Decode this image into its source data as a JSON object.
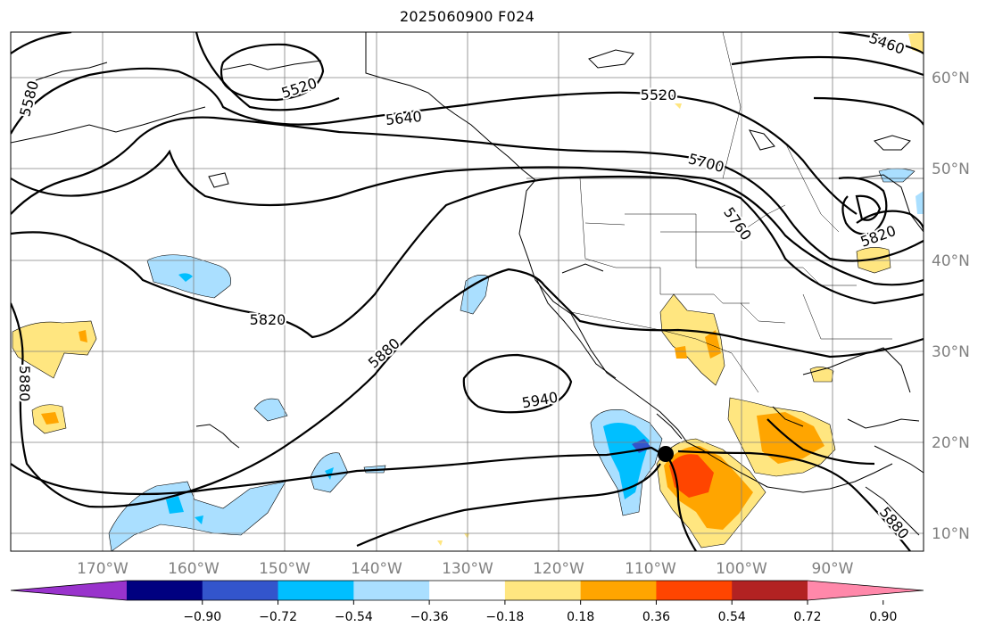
{
  "title": "2025060900 F024",
  "map": {
    "lat_labels": [
      "60°N",
      "50°N",
      "40°N",
      "30°N",
      "20°N",
      "10°N"
    ],
    "lon_labels": [
      "170°W",
      "160°W",
      "150°W",
      "140°W",
      "130°W",
      "120°W",
      "110°W",
      "100°W",
      "90°W"
    ],
    "contour_labels": [
      "5580",
      "5520",
      "5460",
      "5640",
      "5520",
      "5700",
      "5760",
      "5820",
      "5820",
      "5880",
      "5880",
      "5940",
      "5880"
    ],
    "grid_color": "#808080",
    "marker": {
      "type": "filled-circle",
      "color": "#000000"
    }
  },
  "colorbar": {
    "colors": [
      "#9933cc",
      "#000080",
      "#3355cc",
      "#00bfff",
      "#aadfff",
      "#ffffff",
      "#ffe680",
      "#ffa500",
      "#ff4500",
      "#b22222",
      "#ff88aa"
    ],
    "ticks": [
      "−0.90",
      "−0.72",
      "−0.54",
      "−0.36",
      "−0.18",
      "0.18",
      "0.36",
      "0.54",
      "0.72",
      "0.90"
    ]
  }
}
